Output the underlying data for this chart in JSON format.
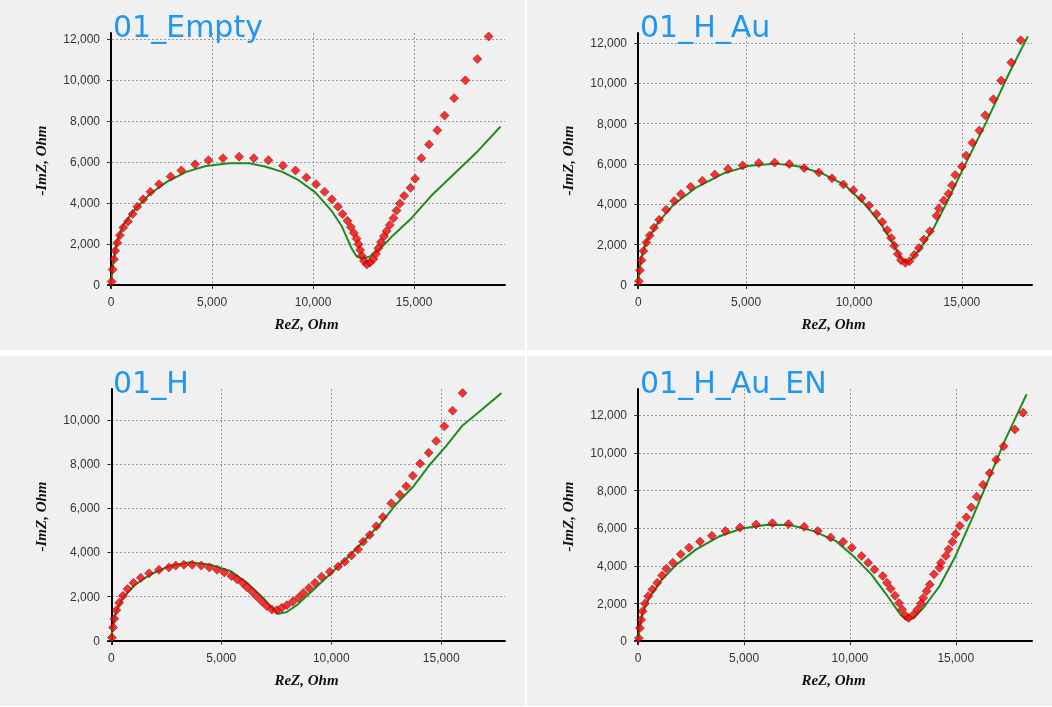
{
  "chart_data": [
    {
      "type": "scatter",
      "title": "01_Empty",
      "xlabel": "ReZ, Ohm",
      "ylabel": "-ImZ, Ohm",
      "grid": true,
      "xlim": [
        -150,
        19500
      ],
      "ylim": [
        -150,
        12300
      ],
      "xticks": [
        {
          "value": 0,
          "label": "0"
        },
        {
          "value": 5000,
          "label": "5,000"
        },
        {
          "value": 10000,
          "label": "10,000"
        },
        {
          "value": 15000,
          "label": "15,000"
        }
      ],
      "yticks": [
        {
          "value": 0,
          "label": "0"
        },
        {
          "value": 2000,
          "label": "2,000"
        },
        {
          "value": 4000,
          "label": "4,000"
        },
        {
          "value": 6000,
          "label": "6,000"
        },
        {
          "value": 8000,
          "label": "8,000"
        },
        {
          "value": 10000,
          "label": "10,000"
        },
        {
          "value": 12000,
          "label": "12,000"
        }
      ],
      "series": [
        {
          "marker": "diamond",
          "color": "#ff0000",
          "x": [
            30,
            80,
            150,
            210,
            310,
            440,
            610,
            840,
            1070,
            1300,
            1590,
            1950,
            2380,
            2950,
            3480,
            4160,
            4820,
            5540,
            6340,
            7070,
            7790,
            8510,
            9130,
            9670,
            10150,
            10570,
            10930,
            11230,
            11460,
            11700,
            11870,
            12020,
            12150,
            12250,
            12330,
            12410,
            12520,
            12660,
            12820,
            12980,
            13110,
            13230,
            13360,
            13510,
            13640,
            13800,
            13980,
            14130,
            14300,
            14510,
            14820,
            15050,
            15360,
            15740,
            16150,
            16510,
            16980,
            17540,
            18130,
            18690
          ],
          "values": [
            170,
            750,
            1250,
            1670,
            2060,
            2430,
            2800,
            3100,
            3460,
            3820,
            4180,
            4550,
            4920,
            5290,
            5590,
            5890,
            6090,
            6190,
            6260,
            6190,
            6090,
            5820,
            5590,
            5240,
            4920,
            4550,
            4180,
            3820,
            3460,
            3130,
            2830,
            2540,
            2260,
            1990,
            1710,
            1420,
            1170,
            1000,
            1090,
            1250,
            1510,
            1790,
            2090,
            2380,
            2630,
            2930,
            3260,
            3630,
            3980,
            4350,
            4740,
            5190,
            6190,
            6860,
            7550,
            8270,
            9120,
            9990,
            11030,
            12130
          ]
        },
        {
          "type": "line",
          "marker": "none",
          "color": "#1e8c1e",
          "x": [
            0,
            110,
            280,
            610,
            1100,
            1920,
            2740,
            3720,
            4700,
            5850,
            6840,
            7660,
            8480,
            9300,
            10110,
            10930,
            11430,
            11920,
            12160,
            12490,
            12820,
            13390,
            13970,
            14870,
            15850,
            17000,
            18150,
            19250
          ],
          "values": [
            80,
            1090,
            2090,
            2930,
            3600,
            4440,
            5020,
            5520,
            5810,
            5940,
            5940,
            5770,
            5520,
            5100,
            4520,
            3600,
            2850,
            1760,
            1390,
            1290,
            1390,
            1840,
            2430,
            3260,
            4350,
            5440,
            6530,
            7700
          ]
        }
      ]
    },
    {
      "type": "scatter",
      "title": "01_H_Au",
      "xlabel": "ReZ, Ohm",
      "ylabel": "-ImZ, Ohm",
      "grid": true,
      "xlim": [
        -150,
        18250
      ],
      "ylim": [
        -150,
        12500
      ],
      "xticks": [
        {
          "value": 0,
          "label": "0"
        },
        {
          "value": 5000,
          "label": "5,000"
        },
        {
          "value": 10000,
          "label": "10,000"
        },
        {
          "value": 15000,
          "label": "15,000"
        }
      ],
      "yticks": [
        {
          "value": 0,
          "label": "0"
        },
        {
          "value": 2000,
          "label": "2,000"
        },
        {
          "value": 4000,
          "label": "4,000"
        },
        {
          "value": 6000,
          "label": "6,000"
        },
        {
          "value": 8000,
          "label": "8,000"
        },
        {
          "value": 10000,
          "label": "10,000"
        },
        {
          "value": 12000,
          "label": "12,000"
        }
      ],
      "series": [
        {
          "marker": "diamond",
          "color": "#ff0000",
          "x": [
            30,
            80,
            150,
            240,
            380,
            530,
            730,
            970,
            1290,
            1670,
            1980,
            2430,
            2970,
            3550,
            4160,
            4840,
            5590,
            6320,
            7000,
            7690,
            8370,
            8980,
            9510,
            9970,
            10350,
            10700,
            11040,
            11310,
            11540,
            11720,
            11870,
            12030,
            12180,
            12380,
            12570,
            12790,
            13010,
            13240,
            13520,
            13820,
            13930,
            14160,
            14380,
            14540,
            14690,
            15000,
            15200,
            15490,
            15810,
            16080,
            16460,
            16820,
            17290,
            17730
          ],
          "values": [
            190,
            730,
            1230,
            1690,
            2110,
            2450,
            2840,
            3230,
            3730,
            4160,
            4510,
            4870,
            5170,
            5480,
            5750,
            5930,
            6050,
            6070,
            6000,
            5800,
            5580,
            5290,
            4990,
            4700,
            4310,
            3940,
            3520,
            3130,
            2720,
            2330,
            1940,
            1540,
            1230,
            1100,
            1180,
            1490,
            1830,
            2250,
            2670,
            3430,
            3800,
            4190,
            4530,
            4950,
            5460,
            5880,
            6420,
            7060,
            7660,
            8420,
            9210,
            10140,
            11040,
            12140
          ]
        },
        {
          "type": "line",
          "marker": "none",
          "color": "#1e8c1e",
          "x": [
            0,
            50,
            150,
            380,
            910,
            1670,
            2740,
            3960,
            5180,
            6390,
            7460,
            8520,
            9590,
            10500,
            11260,
            11800,
            12180,
            12400,
            12630,
            13090,
            13700,
            14310,
            15070,
            16130,
            17200,
            18040
          ],
          "values": [
            50,
            730,
            1400,
            2160,
            3090,
            4020,
            4870,
            5540,
            5920,
            6020,
            5880,
            5540,
            4950,
            4020,
            3010,
            2080,
            1320,
            1100,
            1230,
            1830,
            2840,
            4110,
            5800,
            8080,
            10530,
            12300
          ]
        }
      ]
    },
    {
      "type": "scatter",
      "title": "01_H",
      "xlabel": "ReZ, Ohm",
      "ylabel": "-ImZ, Ohm",
      "grid": true,
      "xlim": [
        -150,
        17900
      ],
      "ylim": [
        -150,
        11400
      ],
      "xticks": [
        {
          "value": 0,
          "label": "0"
        },
        {
          "value": 5000,
          "label": "5,000"
        },
        {
          "value": 10000,
          "label": "10,000"
        },
        {
          "value": 15000,
          "label": "15,000"
        }
      ],
      "yticks": [
        {
          "value": 0,
          "label": "0"
        },
        {
          "value": 2000,
          "label": "2,000"
        },
        {
          "value": 4000,
          "label": "4,000"
        },
        {
          "value": 6000,
          "label": "6,000"
        },
        {
          "value": 8000,
          "label": "8,000"
        },
        {
          "value": 10000,
          "label": "10,000"
        }
      ],
      "series": [
        {
          "marker": "diamond",
          "color": "#ff0000",
          "x": [
            30,
            80,
            140,
            230,
            360,
            530,
            740,
            1010,
            1340,
            1720,
            2170,
            2620,
            2930,
            3300,
            3680,
            4090,
            4460,
            4810,
            5140,
            5460,
            5720,
            5970,
            6170,
            6400,
            6620,
            6850,
            7070,
            7300,
            7530,
            7750,
            7980,
            8250,
            8510,
            8730,
            8990,
            9260,
            9560,
            9940,
            10320,
            10620,
            10920,
            11220,
            11450,
            11750,
            12050,
            12350,
            12730,
            13110,
            13410,
            13710,
            14040,
            14430,
            14770,
            15140,
            15520,
            15970
          ],
          "values": [
            140,
            600,
            990,
            1380,
            1720,
            2030,
            2340,
            2620,
            2850,
            3050,
            3210,
            3320,
            3400,
            3440,
            3440,
            3400,
            3320,
            3210,
            3090,
            2930,
            2780,
            2620,
            2420,
            2230,
            2000,
            1770,
            1570,
            1410,
            1380,
            1490,
            1610,
            1770,
            1950,
            2160,
            2390,
            2620,
            2900,
            3120,
            3360,
            3580,
            3860,
            4140,
            4480,
            4790,
            5180,
            5600,
            6220,
            6620,
            6990,
            7470,
            8020,
            8510,
            9050,
            9710,
            10420,
            11220
          ]
        },
        {
          "type": "line",
          "marker": "none",
          "color": "#1e8c1e",
          "x": [
            0,
            60,
            210,
            510,
            1040,
            1790,
            2700,
            3600,
            4510,
            5410,
            6170,
            6920,
            7370,
            7600,
            7980,
            8430,
            9190,
            9940,
            10690,
            11450,
            12200,
            12960,
            13710,
            14480,
            15230,
            15970,
            16730,
            17710
          ],
          "values": [
            60,
            600,
            1300,
            1920,
            2500,
            3010,
            3400,
            3550,
            3440,
            3160,
            2620,
            1920,
            1410,
            1220,
            1300,
            1610,
            2310,
            3010,
            3710,
            4480,
            5260,
            6190,
            6960,
            7970,
            8820,
            9750,
            10370,
            11190
          ]
        }
      ]
    },
    {
      "type": "scatter",
      "title": "01_H_Au_EN",
      "xlabel": "ReZ, Ohm",
      "ylabel": "-ImZ, Ohm",
      "grid": true,
      "xlim": [
        -150,
        18600
      ],
      "ylim": [
        -150,
        13400
      ],
      "xticks": [
        {
          "value": 0,
          "label": "0"
        },
        {
          "value": 5000,
          "label": "5,000"
        },
        {
          "value": 10000,
          "label": "10,000"
        },
        {
          "value": 15000,
          "label": "15,000"
        }
      ],
      "yticks": [
        {
          "value": 0,
          "label": "0"
        },
        {
          "value": 2000,
          "label": "2,000"
        },
        {
          "value": 4000,
          "label": "4,000"
        },
        {
          "value": 6000,
          "label": "6,000"
        },
        {
          "value": 8000,
          "label": "8,000"
        },
        {
          "value": 10000,
          "label": "10,000"
        },
        {
          "value": 12000,
          "label": "12,000"
        }
      ],
      "series": [
        {
          "marker": "diamond",
          "color": "#ff0000",
          "x": [
            30,
            80,
            140,
            210,
            320,
            470,
            670,
            900,
            1130,
            1330,
            1640,
            2010,
            2400,
            2920,
            3480,
            4120,
            4810,
            5570,
            6340,
            7100,
            7840,
            8480,
            9090,
            9680,
            10090,
            10550,
            10860,
            11160,
            11550,
            11750,
            11930,
            12130,
            12320,
            12470,
            12620,
            12770,
            13000,
            13190,
            13360,
            13460,
            13620,
            13770,
            13970,
            14230,
            14300,
            14530,
            14660,
            14840,
            14990,
            15190,
            15500,
            15730,
            15990,
            16290,
            16600,
            16910,
            17260,
            17790,
            18180
          ],
          "values": [
            160,
            700,
            1140,
            1590,
            2000,
            2390,
            2750,
            3100,
            3490,
            3850,
            4170,
            4620,
            4970,
            5290,
            5600,
            5860,
            6040,
            6200,
            6270,
            6220,
            6080,
            5860,
            5510,
            5280,
            4970,
            4530,
            4170,
            3810,
            3460,
            3100,
            2780,
            2420,
            2030,
            1680,
            1350,
            1230,
            1410,
            1680,
            2000,
            2300,
            2660,
            3010,
            3550,
            3900,
            4170,
            4530,
            4880,
            5280,
            5690,
            6130,
            6580,
            7110,
            7680,
            8310,
            8930,
            9640,
            10360,
            11250,
            12140
          ]
        },
        {
          "type": "line",
          "marker": "none",
          "color": "#1e8c1e",
          "x": [
            0,
            60,
            210,
            520,
            1060,
            1820,
            2740,
            3810,
            4890,
            6110,
            7180,
            8250,
            9330,
            10240,
            11010,
            11780,
            12390,
            12700,
            13000,
            13460,
            14230,
            14990,
            15760,
            16530,
            17290,
            18330
          ],
          "values": [
            70,
            700,
            1500,
            2300,
            3190,
            4080,
            4880,
            5560,
            5990,
            6190,
            6170,
            5860,
            5330,
            4440,
            3550,
            2390,
            1410,
            1140,
            1230,
            1760,
            2920,
            4530,
            6490,
            8540,
            10590,
            13080
          ]
        }
      ]
    }
  ]
}
